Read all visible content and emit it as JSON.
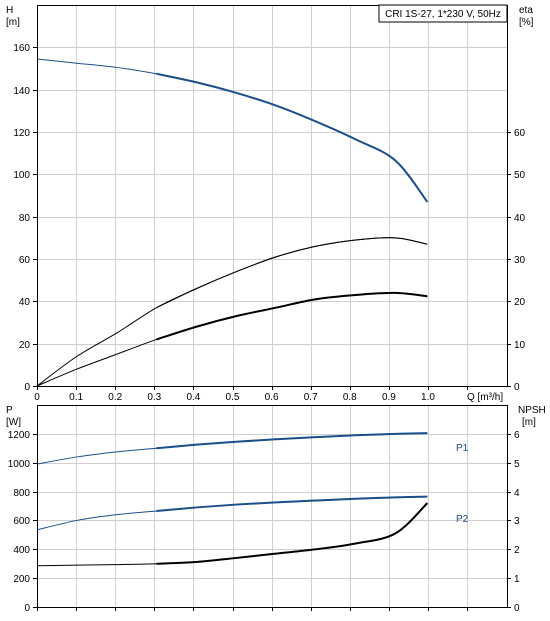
{
  "chart_data": [
    {
      "type": "line",
      "title": "CRI 1S-27, 1*230 V, 50Hz",
      "x_axis": {
        "label": "Q [m³/h]",
        "ticks": [
          "0",
          "0.1",
          "0.2",
          "0.3",
          "0.4",
          "0.5",
          "0.6",
          "0.7",
          "0.8",
          "0.9",
          "1.0"
        ],
        "range": [
          0,
          1.18
        ]
      },
      "y_left": {
        "name": "H",
        "unit": "[m]",
        "ticks": [
          "0",
          "20",
          "40",
          "60",
          "80",
          "100",
          "120",
          "140",
          "160"
        ],
        "range": [
          0,
          180
        ]
      },
      "y_right": {
        "name": "eta",
        "unit": "[%]",
        "ticks": [
          "0",
          "10",
          "20",
          "30",
          "40",
          "50",
          "60"
        ],
        "range": [
          0,
          90
        ]
      },
      "grid": true,
      "series": [
        {
          "axis": "left",
          "color": "#1b4f8a",
          "x": [
            0,
            0.1,
            0.2,
            0.3,
            0.4,
            0.5,
            0.6,
            0.7,
            0.8,
            0.9,
            0.98
          ],
          "y": [
            154.5,
            152.5,
            150.5,
            147.5,
            143.5,
            138.5,
            132.5,
            125,
            116.5,
            106.5,
            87
          ]
        },
        {
          "axis": "right",
          "color": "#000000",
          "x": [
            0,
            0.1,
            0.2,
            0.3,
            0.4,
            0.5,
            0.6,
            0.7,
            0.8,
            0.9,
            0.98
          ],
          "y": [
            0,
            7,
            12.5,
            18.5,
            23,
            27,
            30.5,
            33,
            34.5,
            35,
            33.5
          ]
        },
        {
          "axis": "right",
          "color": "#000000",
          "x": [
            0,
            0.1,
            0.2,
            0.3,
            0.4,
            0.5,
            0.6,
            0.7,
            0.8,
            0.9,
            0.98
          ],
          "y": [
            0,
            4,
            7.5,
            11,
            14,
            16.5,
            18.5,
            20.5,
            21.5,
            22,
            21.2
          ]
        }
      ]
    },
    {
      "type": "line",
      "x_axis": {
        "ticks": [],
        "range": [
          0,
          1.18
        ]
      },
      "y_left": {
        "name": "P",
        "unit": "[W]",
        "ticks": [
          "0",
          "200",
          "400",
          "600",
          "800",
          "1000",
          "1200"
        ],
        "range": [
          0,
          1400
        ]
      },
      "y_right": {
        "name": "NPSH",
        "unit": "[m]",
        "ticks": [
          "0",
          "1",
          "2",
          "3",
          "4",
          "5",
          "6"
        ],
        "range": [
          0,
          7
        ]
      },
      "grid": true,
      "series": [
        {
          "name": "P1",
          "axis": "left",
          "color": "#1b4f8a",
          "x": [
            0,
            0.1,
            0.2,
            0.3,
            0.4,
            0.5,
            0.6,
            0.7,
            0.8,
            0.9,
            0.98
          ],
          "y": [
            990,
            1040,
            1075,
            1100,
            1125,
            1145,
            1163,
            1177,
            1190,
            1200,
            1205
          ]
        },
        {
          "name": "P2",
          "axis": "left",
          "color": "#1b4f8a",
          "x": [
            0,
            0.1,
            0.2,
            0.3,
            0.4,
            0.5,
            0.6,
            0.7,
            0.8,
            0.9,
            0.98
          ],
          "y": [
            535,
            600,
            640,
            665,
            690,
            710,
            725,
            738,
            750,
            760,
            765
          ]
        },
        {
          "axis": "right",
          "color": "#000000",
          "x": [
            0,
            0.1,
            0.2,
            0.3,
            0.4,
            0.5,
            0.6,
            0.7,
            0.8,
            0.9,
            0.98
          ],
          "y": [
            1.43,
            1.45,
            1.47,
            1.5,
            1.56,
            1.7,
            1.85,
            2.0,
            2.2,
            2.55,
            3.6
          ]
        }
      ]
    }
  ]
}
